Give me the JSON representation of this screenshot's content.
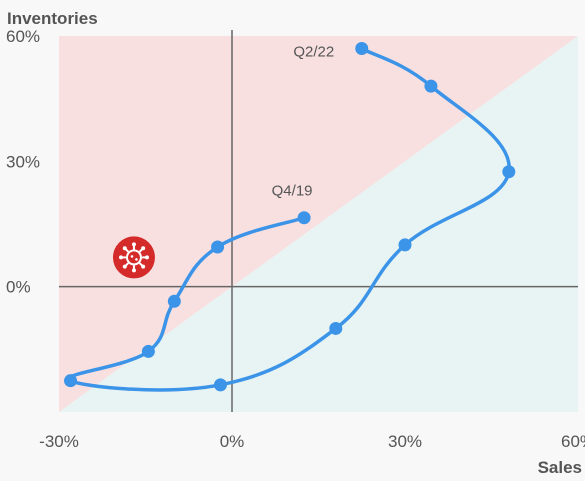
{
  "chart_data": {
    "type": "line",
    "ylabel": "Inventories",
    "xlabel": "Sales",
    "xlim": [
      -30,
      60
    ],
    "ylim": [
      -30,
      60
    ],
    "x_ticks": [
      -30,
      0,
      30,
      60
    ],
    "y_ticks": [
      0,
      30,
      60
    ],
    "x_tick_labels": [
      "-30%",
      "0%",
      "30%",
      "60%"
    ],
    "y_tick_labels": [
      "0%",
      "30%",
      "60%"
    ],
    "grid": false,
    "zero_lines": true,
    "regions": [
      {
        "label": "inventories-above-sales",
        "color": "#f8e0e0"
      },
      {
        "label": "sales-above-inventories",
        "color": "#e8f4f4"
      }
    ],
    "series": [
      {
        "color": "#3b94e8",
        "points": [
          {
            "x": 12.5,
            "y": 16.5
          },
          {
            "x": -2.5,
            "y": 9.5
          },
          {
            "x": -10,
            "y": -3.5
          },
          {
            "x": -14.5,
            "y": -15.5
          },
          {
            "x": -28,
            "y": -22.5
          },
          {
            "x": -2,
            "y": -23.5
          },
          {
            "x": 18,
            "y": -10
          },
          {
            "x": 30,
            "y": 10
          },
          {
            "x": 48,
            "y": 27.5
          },
          {
            "x": 34.5,
            "y": 48
          },
          {
            "x": 22.5,
            "y": 57
          }
        ]
      }
    ],
    "annotations": [
      {
        "text": "Q4/19",
        "x": 12.5,
        "y": 16.5
      },
      {
        "text": "Q2/22",
        "x": 22.5,
        "y": 57
      }
    ],
    "icon": {
      "name": "virus-icon",
      "x": -17,
      "y": 7,
      "color": "#d42a2a"
    }
  }
}
